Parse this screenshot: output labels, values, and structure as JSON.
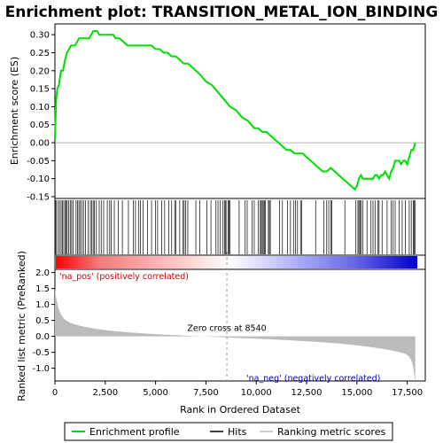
{
  "chart_data": {
    "type": "line",
    "title": "Enrichment plot: TRANSITION_METAL_ION_BINDING",
    "xlabel": "Rank in Ordered Dataset",
    "ylabel_top": "Enrichment score (ES)",
    "ylabel_bottom": "Ranked list metric (PreRanked)",
    "xlim": [
      0,
      18000
    ],
    "x_ticks": [
      0,
      2500,
      5000,
      7500,
      10000,
      12500,
      15000,
      17500
    ],
    "x_tick_labels": [
      "0",
      "2,500",
      "5,000",
      "7,500",
      "10,000",
      "12,500",
      "15,000",
      "17,500"
    ],
    "es_ylim": [
      -0.155,
      0.33
    ],
    "es_ticks": [
      -0.15,
      -0.1,
      -0.05,
      0.0,
      0.05,
      0.1,
      0.15,
      0.2,
      0.25,
      0.3
    ],
    "es_tick_labels": [
      "-0.15",
      "-0.10",
      "-0.05",
      "0.00",
      "0.05",
      "0.10",
      "0.15",
      "0.20",
      "0.25",
      "0.30"
    ],
    "metric_ylim": [
      -1.4,
      2.1
    ],
    "metric_ticks": [
      -1.0,
      -0.5,
      0.0,
      0.5,
      1.0,
      1.5,
      2.0
    ],
    "metric_tick_labels": [
      "-1.0",
      "-0.5",
      "0.0",
      "0.5",
      "1.0",
      "1.5",
      "2.0"
    ],
    "zero_cross": 8540,
    "zero_cross_label": "Zero cross at 8540",
    "pos_label": "'na_pos' (positively correlated)",
    "neg_label": "'na_neg' (negatively correlated)",
    "series": [
      {
        "name": "Enrichment profile",
        "x": [
          0,
          60,
          120,
          200,
          300,
          400,
          500,
          600,
          700,
          800,
          900,
          1000,
          1100,
          1200,
          1300,
          1400,
          1500,
          1600,
          1700,
          1800,
          1900,
          2000,
          2100,
          2200,
          2300,
          2400,
          2500,
          2600,
          2700,
          2800,
          2900,
          3000,
          3200,
          3400,
          3600,
          3800,
          4000,
          4200,
          4400,
          4600,
          4800,
          5000,
          5200,
          5400,
          5600,
          5800,
          6000,
          6200,
          6400,
          6600,
          6800,
          7000,
          7200,
          7500,
          7800,
          8100,
          8400,
          8700,
          9000,
          9300,
          9600,
          9900,
          10100,
          10300,
          10500,
          10700,
          10900,
          11100,
          11300,
          11500,
          11700,
          11900,
          12100,
          12300,
          12500,
          12700,
          12900,
          13100,
          13300,
          13500,
          13700,
          13900,
          14100,
          14300,
          14500,
          14700,
          14900,
          15000,
          15100,
          15200,
          15300,
          15500,
          15700,
          15800,
          15900,
          16000,
          16100,
          16200,
          16300,
          16400,
          16500,
          16600,
          16700,
          16800,
          16900,
          17000,
          17100,
          17200,
          17300,
          17400,
          17500,
          17600,
          17700,
          17800,
          17900
        ],
        "y": [
          0.01,
          0.12,
          0.15,
          0.16,
          0.2,
          0.2,
          0.23,
          0.25,
          0.26,
          0.27,
          0.27,
          0.27,
          0.28,
          0.29,
          0.29,
          0.29,
          0.29,
          0.29,
          0.29,
          0.3,
          0.31,
          0.31,
          0.31,
          0.3,
          0.3,
          0.3,
          0.3,
          0.3,
          0.3,
          0.3,
          0.3,
          0.29,
          0.29,
          0.28,
          0.27,
          0.27,
          0.27,
          0.27,
          0.27,
          0.27,
          0.27,
          0.26,
          0.26,
          0.25,
          0.25,
          0.24,
          0.24,
          0.23,
          0.22,
          0.22,
          0.21,
          0.2,
          0.19,
          0.17,
          0.16,
          0.14,
          0.12,
          0.1,
          0.09,
          0.07,
          0.06,
          0.04,
          0.04,
          0.03,
          0.03,
          0.02,
          0.01,
          0.0,
          -0.01,
          -0.02,
          -0.02,
          -0.03,
          -0.03,
          -0.03,
          -0.04,
          -0.05,
          -0.06,
          -0.07,
          -0.08,
          -0.08,
          -0.07,
          -0.08,
          -0.09,
          -0.1,
          -0.11,
          -0.12,
          -0.13,
          -0.12,
          -0.1,
          -0.09,
          -0.1,
          -0.1,
          -0.1,
          -0.1,
          -0.09,
          -0.09,
          -0.1,
          -0.09,
          -0.09,
          -0.08,
          -0.09,
          -0.1,
          -0.08,
          -0.07,
          -0.05,
          -0.05,
          -0.05,
          -0.06,
          -0.05,
          -0.05,
          -0.06,
          -0.04,
          -0.02,
          -0.02,
          0.0
        ]
      }
    ],
    "hits": [
      20,
      70,
      150,
      230,
      310,
      380,
      440,
      520,
      560,
      610,
      690,
      760,
      830,
      900,
      1050,
      1120,
      1190,
      1260,
      1340,
      1420,
      1520,
      1650,
      1760,
      1830,
      1900,
      1960,
      2060,
      2200,
      2300,
      2420,
      2600,
      2720,
      2800,
      2950,
      3150,
      3350,
      3650,
      3900,
      4000,
      4150,
      4250,
      4380,
      4600,
      4800,
      5000,
      5100,
      5300,
      5450,
      5650,
      5800,
      5950,
      6000,
      6200,
      6350,
      6420,
      6500,
      6600,
      7000,
      7200,
      7550,
      7750,
      8000,
      8100,
      8200,
      8350,
      8420,
      8480,
      8500,
      8600,
      8650,
      8700,
      9150,
      9450,
      9550,
      9800,
      9900,
      10100,
      10200,
      10250,
      10300,
      10350,
      10400,
      10450,
      10600,
      10650,
      10700,
      11150,
      11300,
      11550,
      11700,
      11850,
      11950,
      12050,
      12200,
      12250,
      12950,
      13350,
      13500,
      13600,
      13700,
      13750,
      14400,
      14950,
      15050,
      15100,
      15150,
      15200,
      15300,
      15500,
      15700,
      15800,
      15900,
      16050,
      16100,
      16250,
      16500,
      16700,
      16800,
      16900,
      17100,
      17250,
      17400,
      17600,
      17700,
      17800,
      17850,
      17900
    ],
    "legend": [
      {
        "label": "Enrichment profile",
        "color": "#00dd00"
      },
      {
        "label": "Hits",
        "color": "#000000"
      },
      {
        "label": "Ranking metric scores",
        "color": "#bbbbbb"
      }
    ],
    "colors": {
      "es_line": "#00dd00",
      "metric_fill": "#bbbbbb",
      "pos_text": "#cc0000",
      "neg_text": "#0000cc",
      "zero_line": "#999999"
    }
  }
}
